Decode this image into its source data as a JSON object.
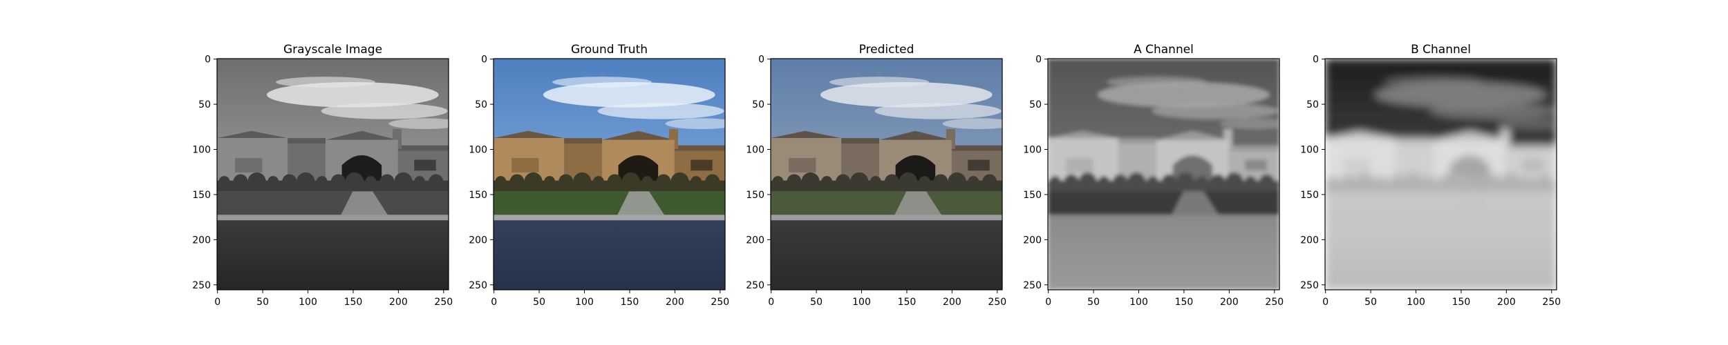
{
  "figure": {
    "panels": [
      {
        "id": "grayscale",
        "title": "Grayscale Image",
        "mode": "gray"
      },
      {
        "id": "ground-truth",
        "title": "Ground Truth",
        "mode": "color"
      },
      {
        "id": "predicted",
        "title": "Predicted",
        "mode": "muted"
      },
      {
        "id": "a-channel",
        "title": "A Channel",
        "mode": "achan"
      },
      {
        "id": "b-channel",
        "title": "B Channel",
        "mode": "bchan"
      }
    ],
    "x_ticks": [
      "0",
      "50",
      "100",
      "150",
      "200",
      "250"
    ],
    "y_ticks": [
      "0",
      "50",
      "100",
      "150",
      "200",
      "250"
    ],
    "axis_range": [
      0,
      256
    ],
    "colors": {
      "axis": "#000000",
      "sky_blue": "#6f9fd6",
      "road_blue": "#2b3446",
      "grass_green": "#3e5a2e"
    }
  }
}
